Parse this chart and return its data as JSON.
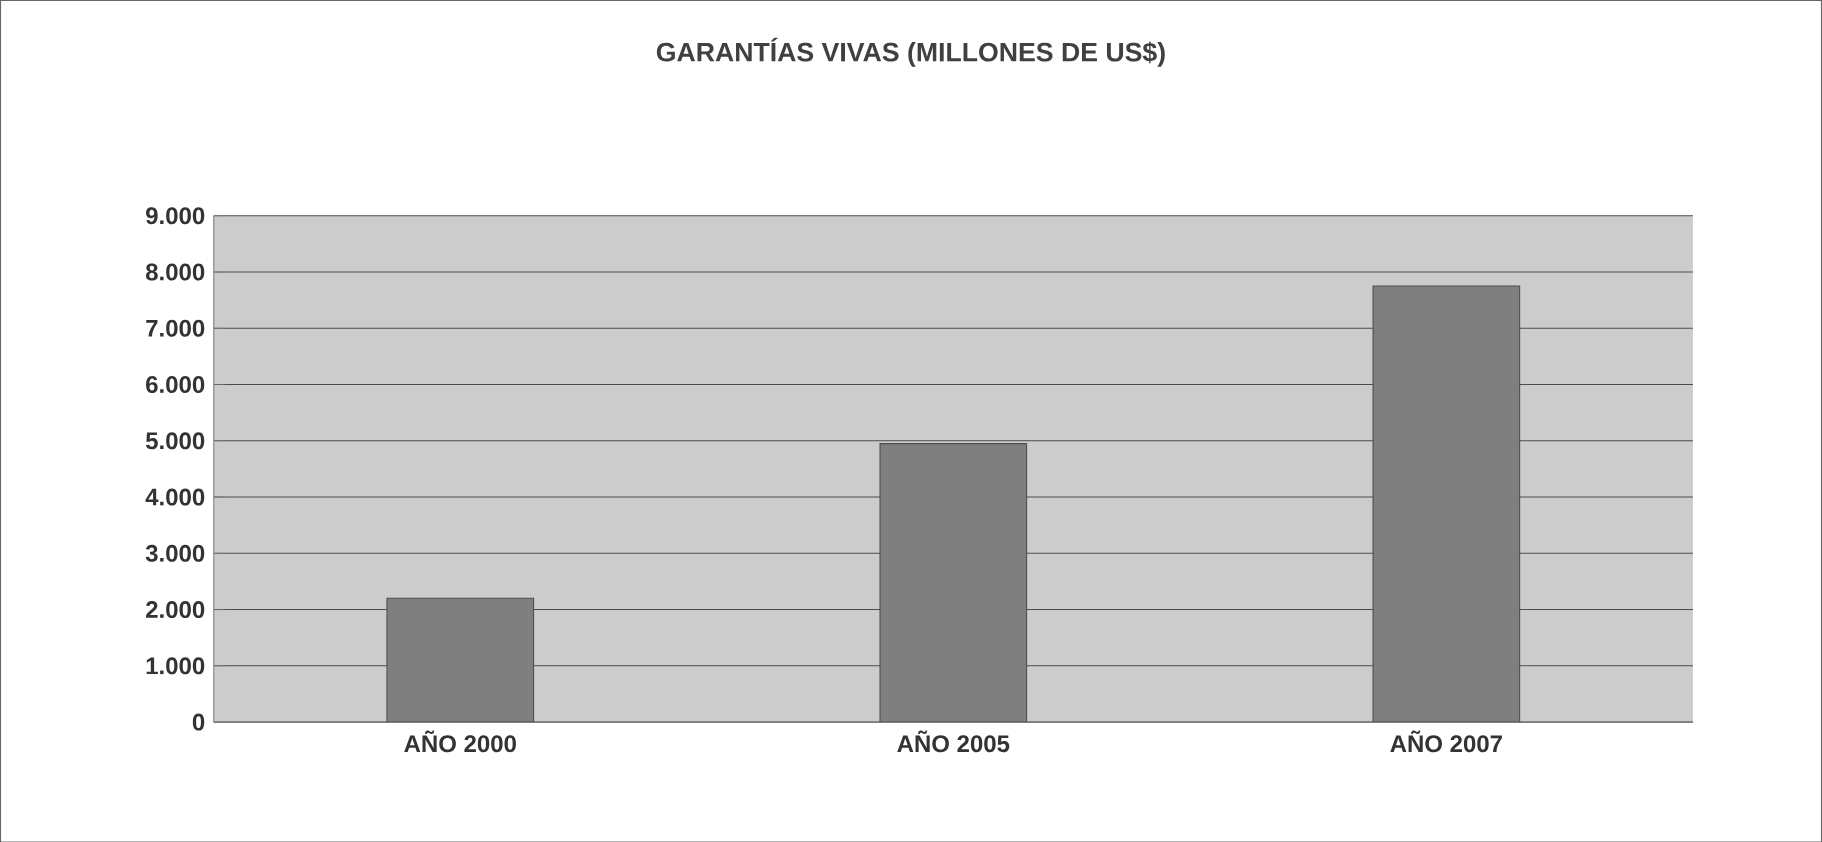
{
  "chart_data": {
    "type": "bar",
    "title": "GARANTÍAS VIVAS (MILLONES DE US$)",
    "categories": [
      "AÑO 2000",
      "AÑO 2005",
      "AÑO 2007"
    ],
    "values": [
      2200,
      4950,
      7750
    ],
    "color": "#7f7f7f",
    "ylim": [
      0,
      9000
    ],
    "yticks": [
      0,
      {
        "value": 1000,
        "label": "1.000"
      },
      {
        "value": 2000,
        "label": "2.000"
      },
      {
        "value": 3000,
        "label": "3.000"
      },
      {
        "value": 4000,
        "label": "4.000"
      },
      {
        "value": 5000,
        "label": "5.000"
      },
      {
        "value": 6000,
        "label": "6.000"
      },
      {
        "value": 7000,
        "label": "7.000"
      },
      {
        "value": 8000,
        "label": "8.000"
      },
      {
        "value": 9000,
        "label": "9.000"
      }
    ],
    "grid": "y"
  }
}
